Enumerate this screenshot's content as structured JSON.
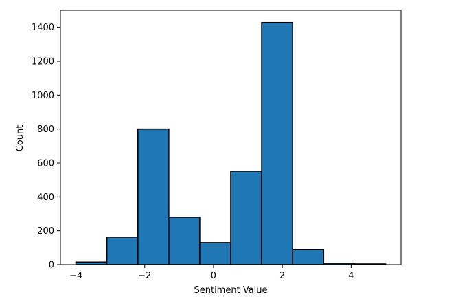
{
  "chart_data": {
    "type": "bar",
    "subtype": "histogram",
    "xlabel": "Sentiment Value",
    "ylabel": "Count",
    "xlim": [
      -4.45,
      5.45
    ],
    "ylim": [
      0,
      1500
    ],
    "x_ticks": [
      -4,
      -2,
      0,
      2,
      4
    ],
    "x_tick_labels": [
      "−4",
      "−2",
      "0",
      "2",
      "4"
    ],
    "y_ticks": [
      0,
      200,
      400,
      600,
      800,
      1000,
      1200,
      1400
    ],
    "y_tick_labels": [
      "0",
      "200",
      "400",
      "600",
      "800",
      "1000",
      "1200",
      "1400"
    ],
    "bin_edges": [
      -4.0,
      -3.1,
      -2.2,
      -1.3,
      -0.4,
      0.5,
      1.4,
      2.3,
      3.2,
      4.1,
      5.0
    ],
    "values": [
      15,
      163,
      800,
      280,
      130,
      552,
      1428,
      90,
      8,
      4
    ],
    "bar_color": "#1f77b4",
    "edge_color": "#000000",
    "grid": false,
    "legend": "none"
  }
}
